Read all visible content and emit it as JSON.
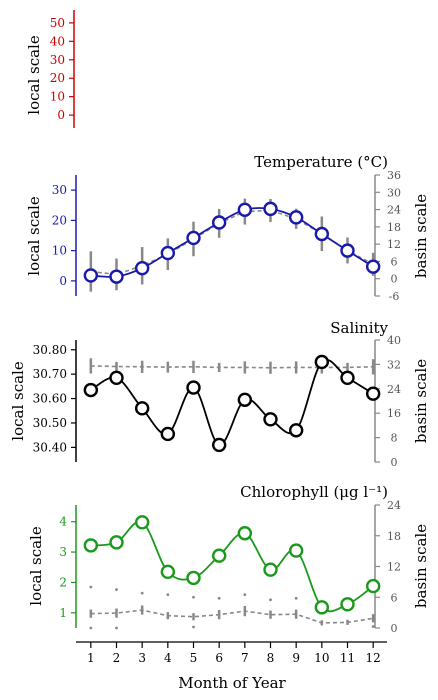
{
  "figure": {
    "x_axis": {
      "label": "Month of Year",
      "ticks": [
        "1",
        "2",
        "3",
        "4",
        "5",
        "6",
        "7",
        "8",
        "9",
        "10",
        "11",
        "12"
      ]
    }
  },
  "chart_data": [
    {
      "type": "line",
      "panel": "top",
      "title": "",
      "color": "#cc0000",
      "left_axis": {
        "label": "local scale",
        "ticks": [
          "50",
          "40",
          "30",
          "20",
          "10",
          "0"
        ],
        "range": [
          -7,
          57
        ]
      },
      "series": []
    },
    {
      "type": "line",
      "panel": "temperature",
      "title": "Temperature (°C)",
      "color": "#1a1aaa",
      "left_axis": {
        "label": "local scale",
        "ticks": [
          "30",
          "20",
          "10",
          "0"
        ],
        "range": [
          -5,
          35
        ]
      },
      "right_axis": {
        "label": "basin scale",
        "ticks": [
          "36",
          "30",
          "24",
          "18",
          "12",
          "6",
          "0",
          "-6"
        ],
        "range": [
          -6,
          36
        ]
      },
      "x": [
        1,
        2,
        3,
        4,
        5,
        6,
        7,
        8,
        9,
        10,
        11,
        12
      ],
      "series": [
        {
          "values": [
            1.8,
            1.4,
            4.2,
            9.2,
            14.2,
            19.3,
            23.5,
            23.8,
            21.0,
            15.5,
            10.0,
            4.7
          ]
        }
      ],
      "basin_reference": {
        "values": [
          2.5,
          1.5,
          4.5,
          8.5,
          13.8,
          19.2,
          23.3,
          23.7,
          20.8,
          15.6,
          9.8,
          5.0
        ],
        "error": [
          7.0,
          5.5,
          6.5,
          5.5,
          6.0,
          5.0,
          4.5,
          4.0,
          3.5,
          6.0,
          4.5,
          4.0
        ],
        "color": "#888888"
      }
    },
    {
      "type": "line",
      "panel": "salinity",
      "title": "Salinity",
      "color": "#000000",
      "left_axis": {
        "label": "local scale",
        "ticks": [
          "30.80",
          "30.70",
          "30.60",
          "30.50",
          "30.40"
        ],
        "range": [
          30.34,
          30.84
        ]
      },
      "right_axis": {
        "label": "basin scale",
        "ticks": [
          "40",
          "32",
          "24",
          "16",
          "8",
          "0"
        ],
        "range": [
          0,
          40
        ]
      },
      "x": [
        1,
        2,
        3,
        4,
        5,
        6,
        7,
        8,
        9,
        10,
        11,
        12
      ],
      "series": [
        {
          "values": [
            30.635,
            30.685,
            30.56,
            30.455,
            30.645,
            30.41,
            30.595,
            30.515,
            30.47,
            30.75,
            30.685,
            30.62
          ]
        }
      ],
      "basin_reference": {
        "values": [
          31.5,
          31.3,
          31.2,
          31.1,
          31.2,
          31.0,
          31.0,
          30.9,
          31.0,
          31.0,
          31.0,
          31.2
        ],
        "error": [
          2.5,
          1.5,
          2.0,
          1.8,
          2.0,
          1.5,
          2.0,
          2.0,
          2.0,
          2.0,
          1.5,
          2.5
        ],
        "color": "#888888"
      }
    },
    {
      "type": "line",
      "panel": "chlorophyll",
      "title": "Chlorophyll (μg l⁻¹)",
      "color": "#1a9a1a",
      "left_axis": {
        "label": "local scale",
        "ticks": [
          "4",
          "3",
          "2",
          "1"
        ],
        "range": [
          0.5,
          4.55
        ]
      },
      "right_axis": {
        "label": "basin scale",
        "ticks": [
          "24",
          "18",
          "12",
          "6",
          "0"
        ],
        "range": [
          0,
          24
        ]
      },
      "x": [
        1,
        2,
        3,
        4,
        5,
        6,
        7,
        8,
        9,
        10,
        11,
        12
      ],
      "series": [
        {
          "values": [
            3.22,
            3.32,
            3.98,
            2.35,
            2.15,
            2.88,
            3.62,
            2.42,
            3.05,
            1.18,
            1.28,
            1.88
          ]
        }
      ],
      "basin_reference": {
        "values": [
          2.8,
          2.9,
          3.5,
          2.4,
          2.2,
          2.6,
          3.3,
          2.6,
          2.7,
          1.0,
          1.1,
          1.9
        ],
        "error": [
          0.8,
          0.9,
          0.9,
          0.7,
          0.7,
          0.9,
          1.0,
          0.8,
          0.9,
          0.5,
          0.5,
          0.8
        ],
        "outliers": [
          [
            1,
            8.0
          ],
          [
            2,
            7.5
          ],
          [
            3,
            6.8
          ],
          [
            4,
            6.5
          ],
          [
            5,
            6.0
          ],
          [
            6,
            5.8
          ],
          [
            7,
            6.5
          ],
          [
            8,
            5.5
          ],
          [
            9,
            5.8
          ],
          [
            1,
            0.0
          ],
          [
            2,
            0.0
          ],
          [
            5,
            0.2
          ],
          [
            12,
            0.3
          ]
        ],
        "color": "#888888"
      }
    }
  ]
}
